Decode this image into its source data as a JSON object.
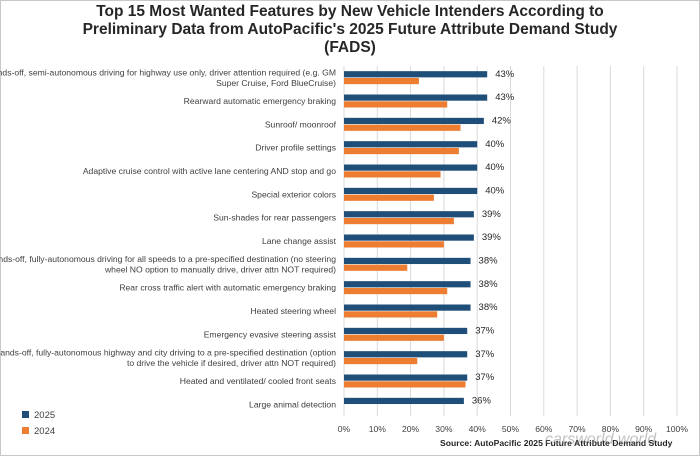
{
  "chart_data": {
    "type": "bar",
    "orientation": "horizontal",
    "title": "Top 15 Most Wanted Features by New Vehicle Intenders According to Preliminary Data from AutoPacific's 2025 Future Attribute Demand Study (FADS)",
    "categories": [
      [
        "Hands-off, semi-autonomous driving for highway use only, driver attention required (e.g. GM",
        "Super Cruise, Ford BlueCruise)"
      ],
      [
        "Rearward automatic emergency braking"
      ],
      [
        "Sunroof/ moonroof"
      ],
      [
        "Driver profile settings"
      ],
      [
        "Adaptive cruise control with active lane centering AND stop and go"
      ],
      [
        "Special exterior colors"
      ],
      [
        "Sun-shades for rear passengers"
      ],
      [
        "Lane change assist"
      ],
      [
        "Hands-off, fully-autonomous driving for all speeds to a pre-specified destination (no steering",
        "wheel NO option to manually drive, driver attn NOT required)"
      ],
      [
        "Rear cross traffic alert with automatic emergency braking"
      ],
      [
        "Heated steering wheel"
      ],
      [
        "Emergency evasive steering assist"
      ],
      [
        "Hands-off, fully-autonomous highway and city driving to a pre-specified destination (option",
        "to drive the vehicle if desired, driver attn NOT required)"
      ],
      [
        "Heated and ventilated/ cooled front seats"
      ],
      [
        "Large animal detection"
      ]
    ],
    "series": [
      {
        "name": "2025",
        "color": "#1f4e79",
        "values": [
          43,
          43,
          42,
          40,
          40,
          40,
          39,
          39,
          38,
          38,
          38,
          37,
          37,
          37,
          36
        ],
        "labels": [
          "43%",
          "43%",
          "42%",
          "40%",
          "40%",
          "40%",
          "39%",
          "39%",
          "38%",
          "38%",
          "38%",
          "37%",
          "37%",
          "37%",
          "36%"
        ]
      },
      {
        "name": "2024",
        "color": "#ed7d31",
        "values": [
          22.5,
          31,
          35,
          34.5,
          29,
          27,
          33,
          30,
          19,
          31,
          28,
          30,
          22,
          36.5,
          null
        ]
      }
    ],
    "xlim": [
      0,
      100
    ],
    "xticks": [
      "0%",
      "10%",
      "20%",
      "30%",
      "40%",
      "50%",
      "60%",
      "70%",
      "80%",
      "90%",
      "100%"
    ],
    "grid": true,
    "legend": "bottom-left"
  },
  "source": "Source: AutoPacific 2025 Future Attribute Demand Study",
  "watermark": "carsworld.world"
}
